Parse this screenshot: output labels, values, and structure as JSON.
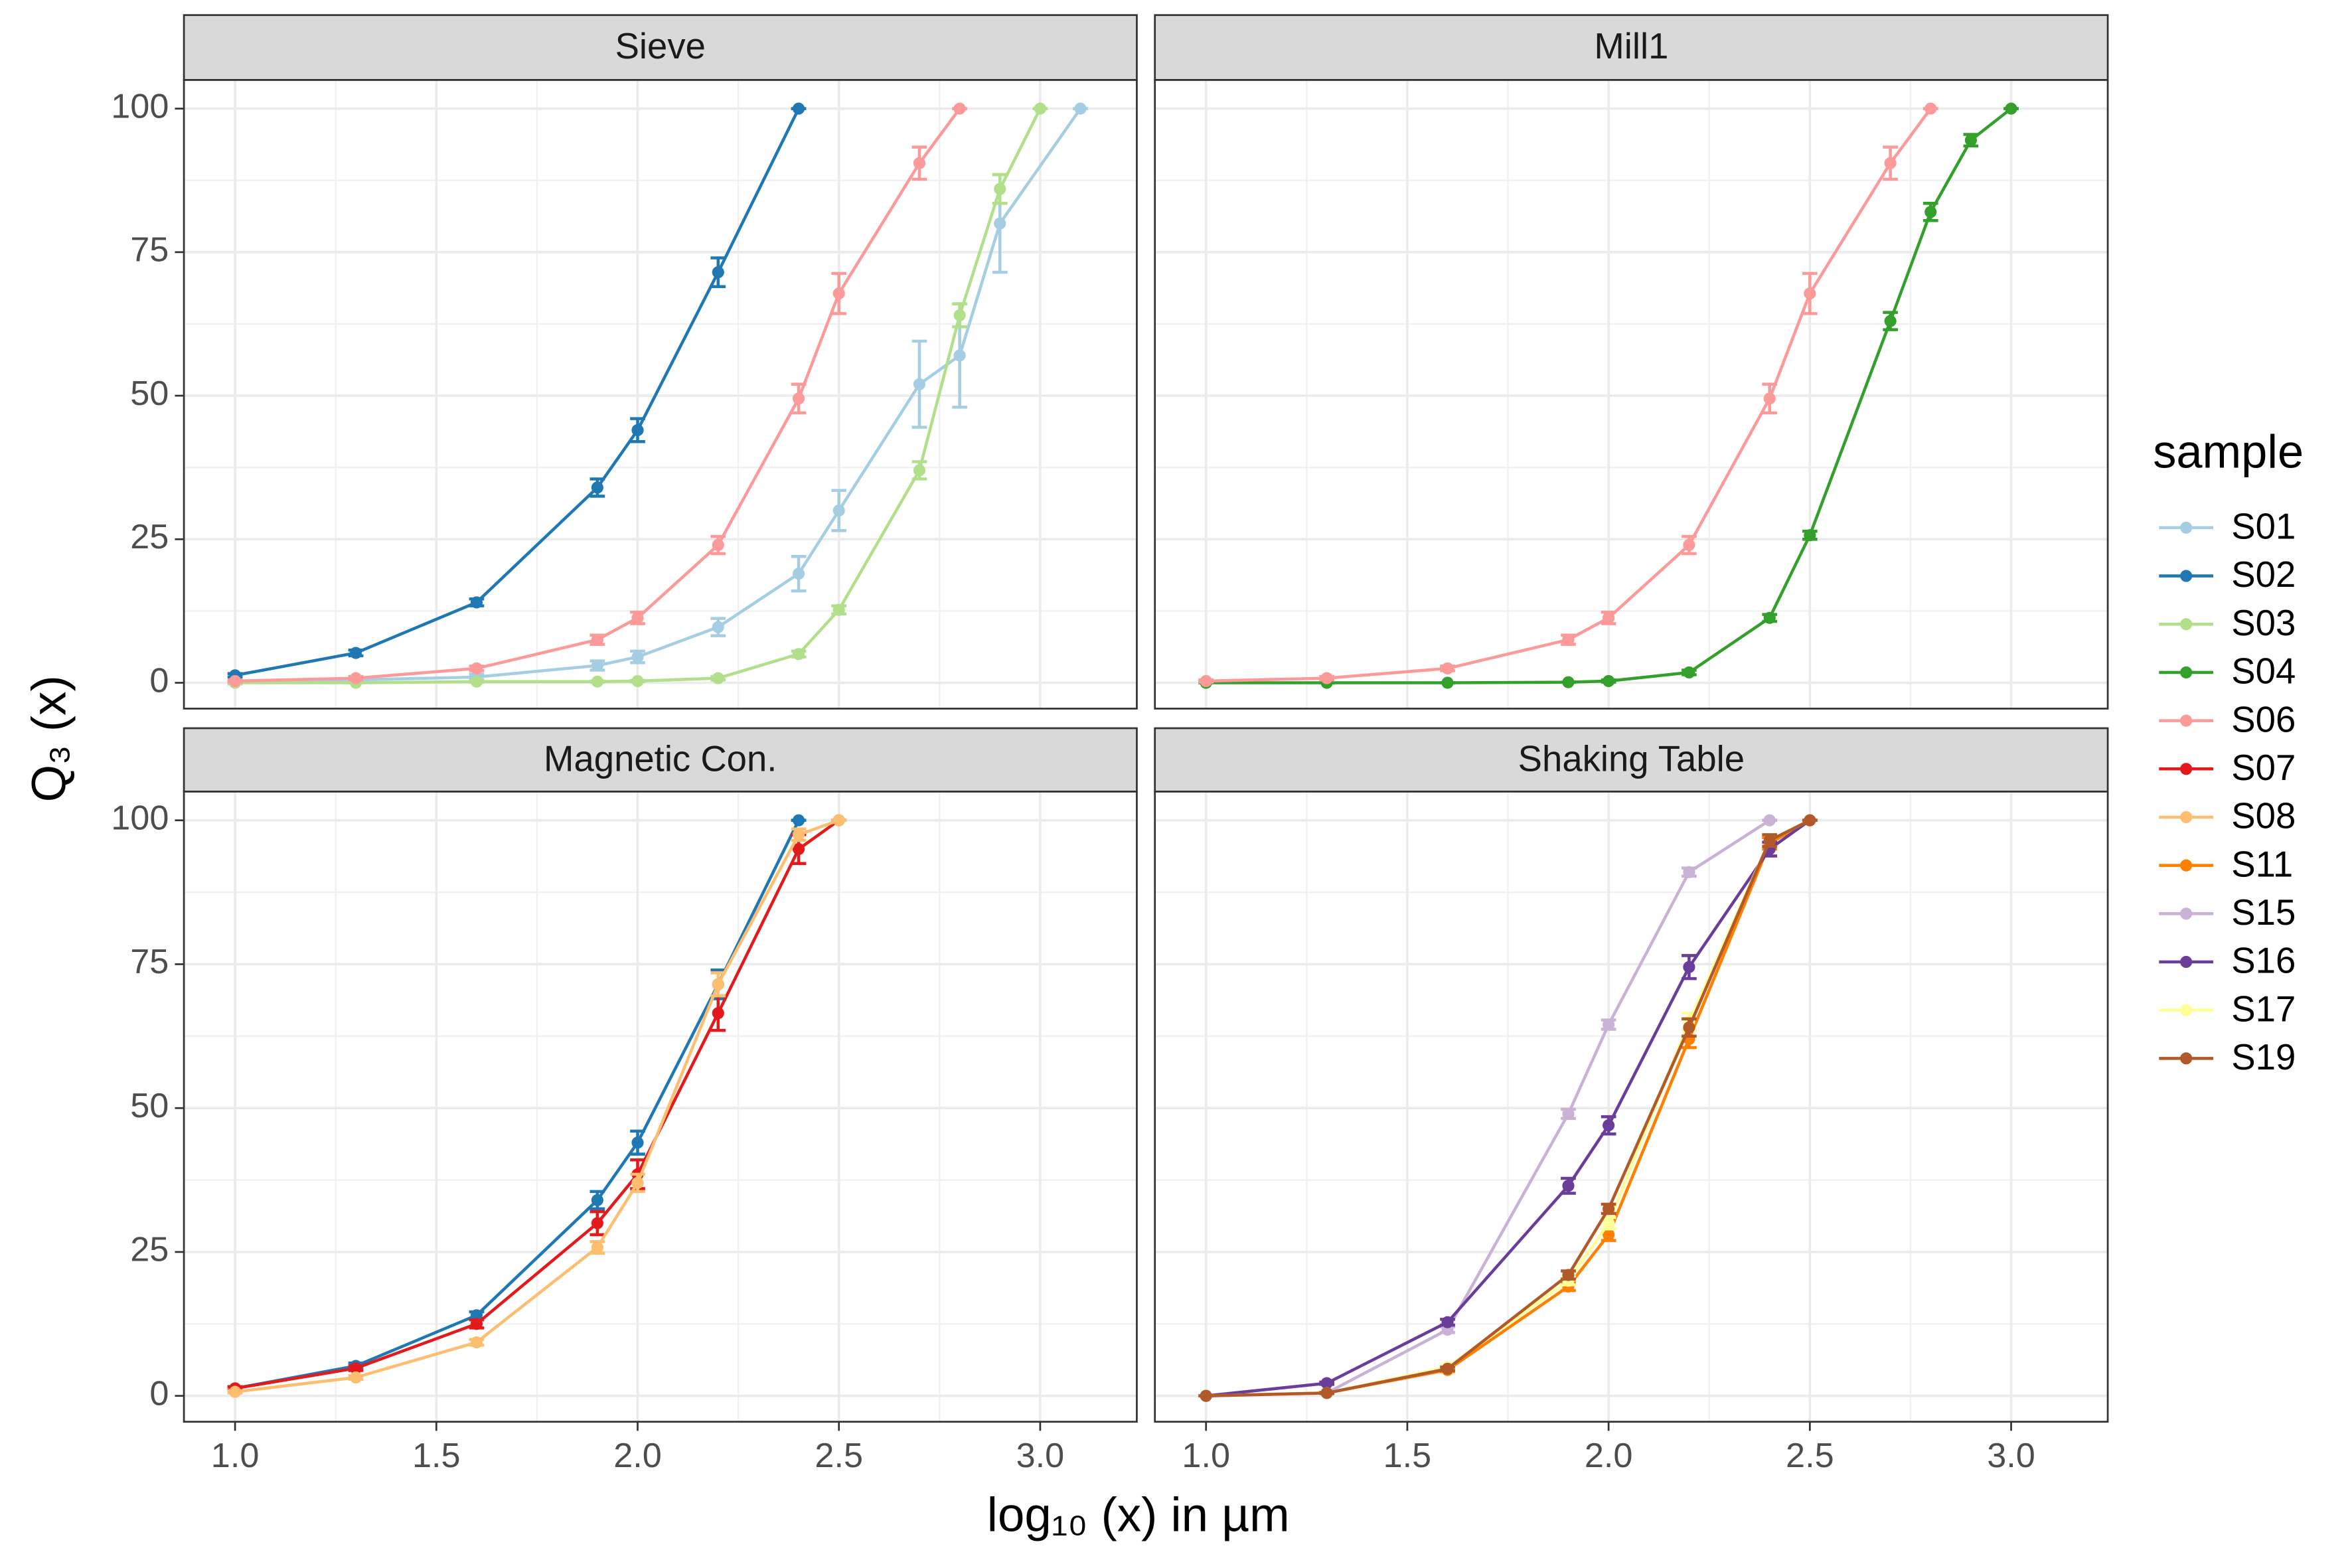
{
  "chart_data": {
    "type": "line",
    "xlabel": "log₁₀ (x) in µm",
    "ylabel": "Q₃ (x)",
    "xlim": [
      0.873,
      3.24
    ],
    "ylim": [
      -4.5,
      105
    ],
    "xticks": [
      {
        "value": 1,
        "label": "1.0"
      },
      {
        "value": 1.5,
        "label": "1.5"
      },
      {
        "value": 2,
        "label": "2.0"
      },
      {
        "value": 2.5,
        "label": "2.5"
      },
      {
        "value": 3,
        "label": "3.0"
      }
    ],
    "yticks": [
      0,
      25,
      50,
      75,
      100
    ],
    "grid": true,
    "minor_grid": true,
    "legend": {
      "title": "sample",
      "position": "right",
      "items": [
        {
          "name": "S01",
          "color": "#a6cee3"
        },
        {
          "name": "S02",
          "color": "#1f78b4"
        },
        {
          "name": "S03",
          "color": "#b2df8a"
        },
        {
          "name": "S04",
          "color": "#33a02c"
        },
        {
          "name": "S06",
          "color": "#fb9a99"
        },
        {
          "name": "S07",
          "color": "#e31a1c"
        },
        {
          "name": "S08",
          "color": "#fdbf6f"
        },
        {
          "name": "S11",
          "color": "#ff7f00"
        },
        {
          "name": "S15",
          "color": "#cab2d6"
        },
        {
          "name": "S16",
          "color": "#6a3d9a"
        },
        {
          "name": "S17",
          "color": "#ffff99"
        },
        {
          "name": "S19",
          "color": "#b15928"
        }
      ]
    },
    "facets": [
      {
        "title": "Sieve",
        "series": [
          {
            "name": "S01",
            "color": "#a6cee3",
            "x": [
              1,
              1.3,
              1.6,
              1.9,
              2,
              2.2,
              2.4,
              2.5,
              2.7,
              2.8,
              2.9,
              3.1
            ],
            "values": [
              0,
              0.5,
              1,
              3,
              4.5,
              9.7,
              19,
              30,
              52,
              57,
              80,
              100
            ],
            "errors": [
              0.2,
              0.3,
              0.5,
              0.8,
              1,
              1.5,
              3,
              3.5,
              7.5,
              9,
              8.5,
              0
            ]
          },
          {
            "name": "S02",
            "color": "#1f78b4",
            "x": [
              1,
              1.3,
              1.6,
              1.9,
              2,
              2.2,
              2.4
            ],
            "values": [
              1.3,
              5.2,
              14,
              34,
              44,
              71.5,
              100
            ],
            "errors": [
              0.3,
              0.5,
              0.6,
              1.5,
              2,
              2.5,
              0
            ]
          },
          {
            "name": "S03",
            "color": "#b2df8a",
            "x": [
              1,
              1.3,
              1.6,
              1.9,
              2,
              2.2,
              2.4,
              2.5,
              2.7,
              2.8,
              2.9,
              3
            ],
            "values": [
              0,
              0,
              0.2,
              0.2,
              0.3,
              0.8,
              5,
              12.7,
              37,
              64,
              86,
              100
            ],
            "errors": [
              0,
              0,
              0.1,
              0.1,
              0.1,
              0.3,
              0.5,
              0.7,
              1.5,
              2,
              2.5,
              0
            ]
          },
          {
            "name": "S06",
            "color": "#fb9a99",
            "x": [
              1,
              1.3,
              1.6,
              1.9,
              2,
              2.2,
              2.4,
              2.5,
              2.7,
              2.8
            ],
            "values": [
              0.3,
              0.8,
              2.5,
              7.5,
              11.3,
              24,
              49.5,
              67.8,
              90.5,
              100
            ],
            "errors": [
              0.2,
              0.3,
              0.4,
              0.8,
              1,
              1.5,
              2.5,
              3.5,
              2.8,
              0
            ]
          }
        ]
      },
      {
        "title": "Mill1",
        "series": [
          {
            "name": "S04",
            "color": "#33a02c",
            "x": [
              1,
              1.3,
              1.6,
              1.9,
              2,
              2.2,
              2.4,
              2.5,
              2.7,
              2.8,
              2.9,
              3
            ],
            "values": [
              0,
              0,
              0,
              0.1,
              0.3,
              1.8,
              11.3,
              25.7,
              63,
              82,
              94.5,
              100
            ],
            "errors": [
              0,
              0,
              0,
              0,
              0.2,
              0.4,
              0.6,
              0.7,
              1.5,
              1.5,
              1,
              0
            ]
          },
          {
            "name": "S06",
            "color": "#fb9a99",
            "x": [
              1,
              1.3,
              1.6,
              1.9,
              2,
              2.2,
              2.4,
              2.5,
              2.7,
              2.8
            ],
            "values": [
              0.3,
              0.8,
              2.5,
              7.5,
              11.3,
              24,
              49.5,
              67.8,
              90.5,
              100
            ],
            "errors": [
              0.2,
              0.3,
              0.4,
              0.8,
              1,
              1.5,
              2.5,
              3.5,
              2.8,
              0
            ]
          }
        ]
      },
      {
        "title": "Magnetic Con.",
        "series": [
          {
            "name": "S02",
            "color": "#1f78b4",
            "x": [
              1,
              1.3,
              1.6,
              1.9,
              2,
              2.2,
              2.4
            ],
            "values": [
              1.3,
              5.2,
              14,
              34,
              44,
              71.5,
              100
            ],
            "errors": [
              0.3,
              0.5,
              0.6,
              1.5,
              2,
              2.5,
              0
            ]
          },
          {
            "name": "S07",
            "color": "#e31a1c",
            "x": [
              1,
              1.3,
              1.6,
              1.9,
              2,
              2.2,
              2.4,
              2.5
            ],
            "values": [
              1.3,
              4.8,
              12.5,
              30,
              38.5,
              66.5,
              95,
              100
            ],
            "errors": [
              0.3,
              0.4,
              0.7,
              2,
              2.5,
              3,
              2.5,
              0
            ]
          },
          {
            "name": "S08",
            "color": "#fdbf6f",
            "x": [
              1,
              1.3,
              1.6,
              1.9,
              2,
              2.2,
              2.4,
              2.5
            ],
            "values": [
              0.7,
              3.2,
              9.3,
              25.8,
              37,
              71.5,
              97.5,
              100
            ],
            "errors": [
              0.2,
              0.3,
              0.5,
              1,
              1.5,
              2,
              1,
              0
            ]
          }
        ]
      },
      {
        "title": "Shaking Table",
        "series": [
          {
            "name": "S11",
            "color": "#ff7f00",
            "x": [
              1,
              1.3,
              1.6,
              1.9,
              2,
              2.2,
              2.4,
              2.5
            ],
            "values": [
              0,
              0.5,
              4.5,
              19,
              28,
              62,
              96,
              100
            ],
            "errors": [
              0,
              0.1,
              0.3,
              0.7,
              1,
              1.5,
              1,
              0
            ]
          },
          {
            "name": "S15",
            "color": "#cab2d6",
            "x": [
              1,
              1.3,
              1.6,
              1.9,
              2,
              2.2,
              2.4
            ],
            "values": [
              0,
              0.5,
              11.5,
              49,
              64.5,
              91,
              100
            ],
            "errors": [
              0,
              0.1,
              0.5,
              0.8,
              0.8,
              0.7,
              0
            ]
          },
          {
            "name": "S16",
            "color": "#6a3d9a",
            "x": [
              1,
              1.3,
              1.6,
              1.9,
              2,
              2.2,
              2.4,
              2.5
            ],
            "values": [
              0,
              2.2,
              12.8,
              36.5,
              47,
              74.5,
              95,
              100
            ],
            "errors": [
              0,
              0.2,
              0.5,
              1.3,
              1.5,
              2,
              1.2,
              0
            ]
          },
          {
            "name": "S17",
            "color": "#ffff99",
            "x": [
              1,
              1.3,
              1.6,
              1.9,
              2,
              2.2,
              2.4,
              2.5
            ],
            "values": [
              0,
              0.5,
              5,
              20,
              30,
              65,
              96.5,
              100
            ],
            "errors": [
              0,
              0.1,
              0.3,
              0.7,
              1,
              1.5,
              1,
              0
            ]
          },
          {
            "name": "S19",
            "color": "#b15928",
            "x": [
              1,
              1.3,
              1.6,
              1.9,
              2,
              2.2,
              2.4,
              2.5
            ],
            "values": [
              0,
              0.5,
              4.7,
              21,
              32.5,
              64,
              96.5,
              100
            ],
            "errors": [
              0,
              0.1,
              0.3,
              0.7,
              0.8,
              1.5,
              1,
              0
            ]
          }
        ]
      }
    ]
  }
}
